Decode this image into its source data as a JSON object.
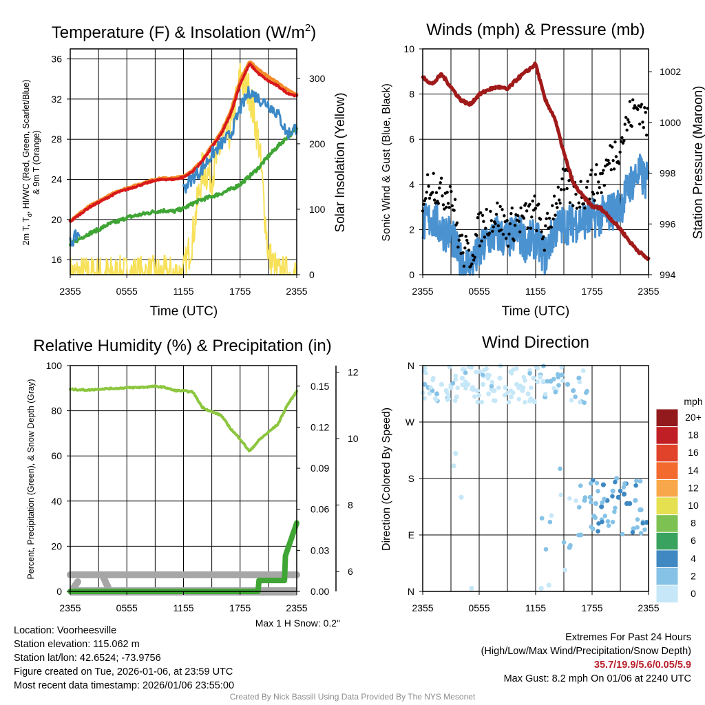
{
  "chart_data": [
    {
      "type": "line",
      "title": "Temperature (F) & Insolation (W/m²)",
      "title_main": "Temperature (F) & Insolation (W/m",
      "title_sup": "2",
      "title_end": ")",
      "xlabel": "Time (UTC)",
      "ylabel_line1": "2m T, T",
      "ylabel_sub": "d",
      "ylabel_line1_end": ", HI/WC (Red, Green, Scarlet/Blue)",
      "ylabel_line2": "& 9m T (Orange)",
      "ylabel_right": "Solar Insolation (Yellow)",
      "xticks": [
        "2355",
        "0555",
        "1155",
        "1755",
        "2355"
      ],
      "ylim": [
        14.5,
        37
      ],
      "yticks": [
        16,
        20,
        24,
        28,
        32,
        36
      ],
      "y2lim": [
        0,
        345
      ],
      "y2ticks": [
        0,
        100,
        200,
        300
      ],
      "x": [
        0,
        1,
        2,
        3,
        4,
        5,
        6,
        7,
        8,
        9,
        10,
        11,
        12,
        13,
        14,
        15,
        16,
        17,
        18,
        19,
        20,
        21,
        22,
        23,
        24
      ],
      "series": [
        {
          "name": "2m Temperature",
          "color": "#d7191c",
          "values": [
            19.8,
            20.5,
            21.2,
            21.7,
            22.2,
            22.7,
            23.0,
            23.3,
            23.6,
            23.9,
            24.0,
            24.0,
            24.2,
            24.8,
            25.8,
            27.2,
            28.5,
            30.5,
            33.5,
            35.5,
            34.5,
            33.8,
            33.3,
            32.6,
            32.3
          ]
        },
        {
          "name": "9m Temperature",
          "color": "#f58c2a",
          "values": [
            19.9,
            20.6,
            21.3,
            21.8,
            22.3,
            22.8,
            23.1,
            23.4,
            23.7,
            24.0,
            24.1,
            24.1,
            24.3,
            24.9,
            25.9,
            27.3,
            28.7,
            30.7,
            33.8,
            35.7,
            34.9,
            34.2,
            33.6,
            32.9,
            32.4
          ]
        },
        {
          "name": "Dew Point",
          "color": "#3fa535",
          "values": [
            17.5,
            18.1,
            18.6,
            19.0,
            19.5,
            19.8,
            20.2,
            20.4,
            20.6,
            20.8,
            20.9,
            20.8,
            21.1,
            21.6,
            22.0,
            22.3,
            22.6,
            23.0,
            23.5,
            24.3,
            25.2,
            26.3,
            27.3,
            28.2,
            29.0
          ]
        },
        {
          "name": "Wind Chill",
          "color": "#3b88c6",
          "values": [
            17.6,
            18.8,
            null,
            null,
            null,
            null,
            null,
            null,
            null,
            null,
            null,
            null,
            23.0,
            24.2,
            25.0,
            26.5,
            27.5,
            28.5,
            31.0,
            32.8,
            32.0,
            31.5,
            30.5,
            28.5,
            29.2
          ]
        }
      ],
      "insolation": [
        0,
        0,
        0,
        0,
        0,
        0,
        0,
        0,
        0,
        0,
        0,
        0,
        0,
        60,
        160,
        150,
        200,
        220,
        300,
        280,
        200,
        30,
        0,
        0,
        0
      ]
    },
    {
      "type": "line",
      "title": "Winds (mph) & Pressure (mb)",
      "xlabel": "Time (UTC)",
      "ylabel": "Sonic Wind & Gust (Blue, Black)",
      "ylabel_right": "Station Pressure (Maroon)",
      "xticks": [
        "2355",
        "0555",
        "1155",
        "1755",
        "2355"
      ],
      "ylim": [
        0,
        10
      ],
      "yticks": [
        0,
        2,
        4,
        6,
        8,
        10
      ],
      "y2lim": [
        994,
        1002.9
      ],
      "y2ticks": [
        994,
        996,
        998,
        1000,
        1002
      ],
      "x": [
        0,
        1,
        2,
        3,
        4,
        5,
        6,
        7,
        8,
        9,
        10,
        11,
        12,
        13,
        14,
        15,
        16,
        17,
        18,
        19,
        20,
        21,
        22,
        23,
        24
      ],
      "series": [
        {
          "name": "Sonic Wind",
          "color": "#4b92d1",
          "values": [
            2.2,
            2.5,
            2.0,
            1.8,
            0.6,
            0.4,
            0.9,
            1.6,
            1.8,
            1.5,
            1.9,
            1.4,
            1.6,
            0.8,
            2.0,
            2.2,
            2.3,
            2.4,
            2.5,
            2.6,
            2.8,
            3.0,
            4.0,
            4.5,
            4.0
          ]
        },
        {
          "name": "Gust",
          "color": "#000000",
          "values": [
            3.5,
            4.2,
            3.5,
            3.8,
            1.2,
            0.8,
            2.0,
            2.5,
            2.6,
            2.0,
            2.4,
            2.5,
            2.8,
            1.6,
            3.2,
            4.0,
            3.6,
            3.6,
            4.0,
            4.2,
            5.2,
            5.8,
            7.0,
            7.5,
            6.5
          ]
        },
        {
          "name": "Station Pressure",
          "color": "#a01a1a",
          "values": [
            1001.8,
            1001.5,
            1001.9,
            1001.4,
            1000.9,
            1000.7,
            1001.1,
            1001.3,
            1001.4,
            1001.3,
            1001.7,
            1002.0,
            1002.3,
            1000.9,
            1000.2,
            998.8,
            997.6,
            997.1,
            996.7,
            996.6,
            996.2,
            995.8,
            995.3,
            994.9,
            994.6
          ]
        }
      ]
    },
    {
      "type": "line",
      "title": "Relative Humidity (%) & Precipitation (in)",
      "ylabel": "Percent, Precipitation (Green), & Snow Depth (Gray)",
      "xticks": [
        "2355",
        "0555",
        "1155",
        "1755",
        "2355"
      ],
      "ylim": [
        0,
        100
      ],
      "yticks": [
        0,
        20,
        40,
        60,
        80,
        100
      ],
      "precip_lim": [
        0,
        0.165
      ],
      "precip_ticks": [
        "0.00",
        "0.03",
        "0.06",
        "0.09",
        "0.12",
        "0.15"
      ],
      "snow_lim": [
        5.4,
        12.2
      ],
      "snow_ticks": [
        6,
        8,
        10,
        12
      ],
      "x": [
        0,
        1,
        2,
        3,
        4,
        5,
        6,
        7,
        8,
        9,
        10,
        11,
        12,
        13,
        14,
        15,
        16,
        17,
        18,
        19,
        20,
        21,
        22,
        23,
        24
      ],
      "series": [
        {
          "name": "Relative Humidity",
          "color": "#8cc63f",
          "values": [
            89.5,
            89.3,
            89.2,
            89.6,
            89.8,
            89.9,
            90.2,
            90.3,
            90.5,
            90.8,
            90.4,
            89.0,
            88.8,
            88.3,
            81.5,
            79.5,
            78.0,
            72.0,
            67.5,
            62.0,
            67.0,
            70.5,
            74.0,
            82.5,
            88.5
          ]
        },
        {
          "name": "Precipitation",
          "color": "#3fa535",
          "values": [
            0,
            0,
            0,
            0,
            0,
            0,
            0,
            0,
            0,
            0,
            0,
            0,
            0,
            0,
            0,
            0,
            0,
            0,
            0,
            0,
            0.01,
            0.01,
            0.01,
            0.03,
            0.05
          ]
        },
        {
          "name": "Snow Depth",
          "color": "#a6a6a6",
          "values": [
            5.9,
            5.9,
            5.9,
            5.9,
            5.9,
            5.9,
            5.9,
            5.9,
            5.9,
            5.9,
            5.9,
            5.9,
            5.9,
            5.9,
            5.9,
            5.9,
            5.9,
            5.9,
            5.9,
            5.9,
            5.9,
            5.9,
            5.9,
            5.9,
            5.9
          ]
        }
      ],
      "annotation": "Max 1 H Snow: 0.2\""
    },
    {
      "type": "scatter",
      "title": "Wind Direction",
      "ylabel": "Direction (Colored By Speed)",
      "xticks": [
        "2355",
        "0555",
        "1155",
        "1755",
        "2355"
      ],
      "yticks": [
        "N",
        "E",
        "S",
        "W",
        "N"
      ],
      "ylim": [
        0,
        360
      ],
      "colorbar_title": "mph",
      "colorbar_labels": [
        "0",
        "2",
        "4",
        "6",
        "8",
        "10",
        "12",
        "14",
        "16",
        "18",
        "20+"
      ],
      "colorbar_colors": [
        "#c6e7f7",
        "#86c2e6",
        "#3f88c2",
        "#3aa25f",
        "#7cc151",
        "#e5e04f",
        "#f8a84a",
        "#f26a2d",
        "#e0432a",
        "#c01f25",
        "#931a1c"
      ],
      "x": [
        0.2,
        0.6,
        1.0,
        1.5,
        2.0,
        2.5,
        3.0,
        3.6,
        4.2,
        4.8,
        5.3,
        5.8,
        6.4,
        7.0,
        7.6,
        8.2,
        8.8,
        9.4,
        10.0,
        10.6,
        11.2,
        11.8,
        12.5,
        13.0,
        13.6,
        14.2,
        14.8,
        15.4,
        16.0,
        16.6,
        17.2,
        17.8,
        18.4,
        19.0,
        19.6,
        20.2,
        20.8,
        21.4,
        22.0,
        22.6,
        23.2,
        23.8,
        3.5,
        3.3,
        4.1,
        5.2,
        12.6,
        13.4,
        15.6,
        16.8,
        18.2,
        19.2,
        20.6,
        21.7,
        22.4,
        23.1
      ],
      "direction": [
        330,
        325,
        320,
        315,
        330,
        320,
        325,
        310,
        340,
        330,
        325,
        320,
        330,
        315,
        320,
        340,
        325,
        310,
        330,
        320,
        315,
        340,
        345,
        310,
        335,
        320,
        345,
        330,
        320,
        340,
        145,
        150,
        140,
        135,
        145,
        160,
        150,
        155,
        140,
        145,
        130,
        110,
        220,
        200,
        150,
        5,
        5,
        10,
        70,
        90,
        120,
        170,
        180,
        140,
        100,
        130
      ],
      "speed": [
        3.5,
        3.0,
        2.5,
        2.0,
        1.5,
        1.0,
        1.2,
        1.0,
        0.8,
        0.8,
        1.5,
        1.2,
        1.8,
        1.5,
        1.6,
        1.2,
        1.6,
        1.8,
        1.5,
        1.2,
        1.6,
        1.4,
        2.5,
        2.0,
        2.8,
        1.8,
        3.0,
        2.6,
        2.4,
        2.5,
        3.0,
        3.2,
        3.8,
        4.2,
        4.0,
        3.5,
        4.5,
        5.0,
        4.2,
        3.8,
        3.6,
        4.1,
        1.2,
        0.5,
        0.6,
        0.4,
        0.8,
        1.5,
        2.2,
        3.0,
        2.8,
        4.5,
        3.6,
        4.2,
        3.0,
        2.5
      ]
    }
  ],
  "location": "Location: Voorheesville",
  "elevation": "Station elevation: 115.062 m",
  "latlon": "Station lat/lon: 42.6524; -73.9756",
  "created": "Figure created on Tue, 2026-01-06, at 23:59 UTC",
  "recent": "Most recent data timestamp: 2026/01/06 23:55:00",
  "extremes_title": "Extremes For Past 24 Hours",
  "extremes_legend": "(High/Low/Max Wind/Precipitation/Snow Depth)",
  "extremes_values": "35.7/19.9/5.6/0.05/5.9",
  "max_gust": "Max Gust: 8.2 mph On 01/06 at 2240 UTC",
  "credit": "Created By Nick Bassill Using Data Provided By The NYS Mesonet"
}
